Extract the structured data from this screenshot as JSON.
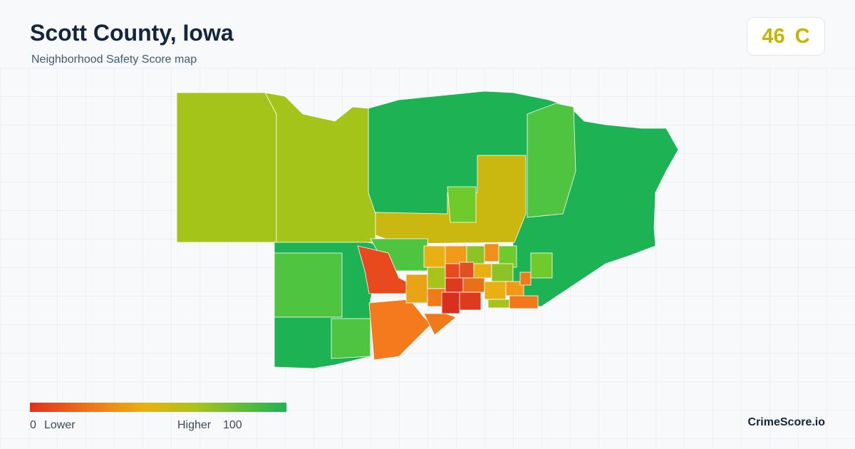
{
  "header": {
    "title": "Scott County, Iowa",
    "subtitle": "Neighborhood Safety Score map"
  },
  "score": {
    "value": 46,
    "grade": "C"
  },
  "legend": {
    "min": 0,
    "min_label": "Lower",
    "max_label": "Higher",
    "max": 100
  },
  "brand": "CrimeScore.io"
}
